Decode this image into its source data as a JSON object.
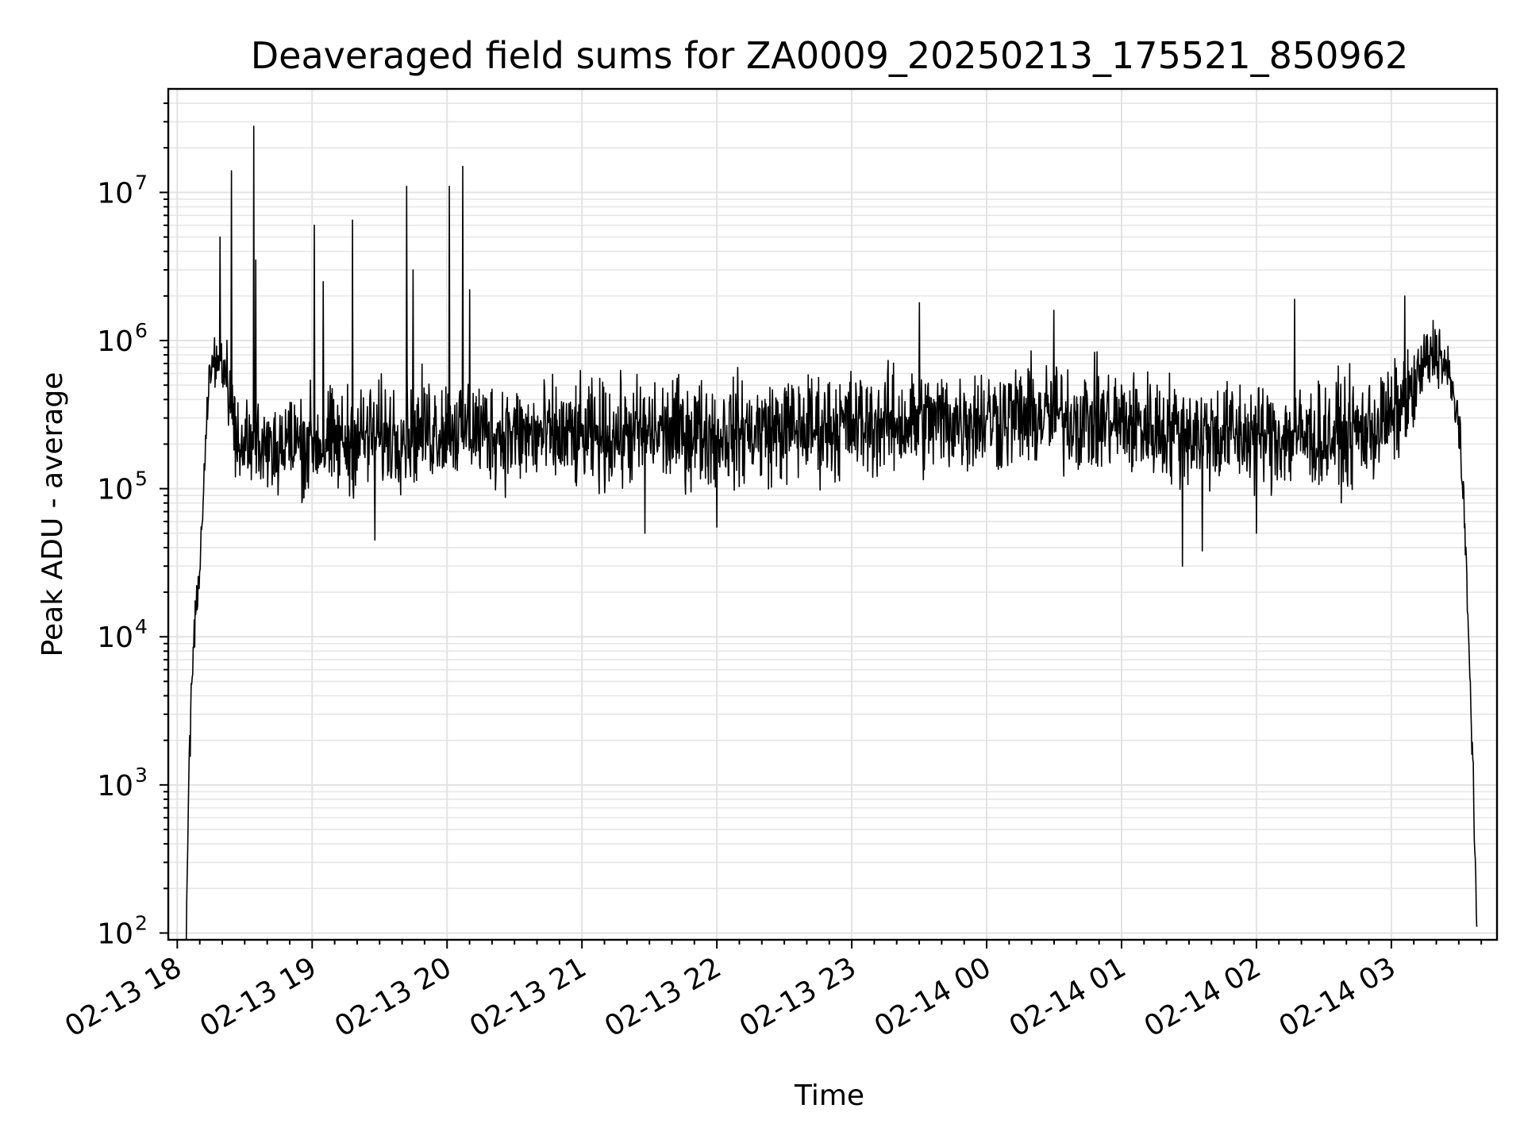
{
  "chart_data": {
    "type": "line",
    "title": "Deaveraged field sums for ZA0009_20250213_175521_850962",
    "xlabel": "Time",
    "ylabel": "Peak ADU - average",
    "yscale": "log",
    "ylim": [
      90,
      50000000
    ],
    "xlim": [
      "2025-02-13 17:56",
      "2025-02-14 03:47"
    ],
    "grid": true,
    "x_ticks": [
      {
        "label": "02-13 18",
        "value": "2025-02-13 18:00"
      },
      {
        "label": "02-13 19",
        "value": "2025-02-13 19:00"
      },
      {
        "label": "02-13 20",
        "value": "2025-02-13 20:00"
      },
      {
        "label": "02-13 21",
        "value": "2025-02-13 21:00"
      },
      {
        "label": "02-13 22",
        "value": "2025-02-13 22:00"
      },
      {
        "label": "02-13 23",
        "value": "2025-02-13 23:00"
      },
      {
        "label": "02-14 00",
        "value": "2025-02-14 00:00"
      },
      {
        "label": "02-14 01",
        "value": "2025-02-14 01:00"
      },
      {
        "label": "02-14 02",
        "value": "2025-02-14 02:00"
      },
      {
        "label": "02-14 03",
        "value": "2025-02-14 03:00"
      }
    ],
    "y_ticks": [
      {
        "base": "10",
        "exp": "2",
        "value": 100
      },
      {
        "base": "10",
        "exp": "3",
        "value": 1000
      },
      {
        "base": "10",
        "exp": "4",
        "value": 10000
      },
      {
        "base": "10",
        "exp": "5",
        "value": 100000
      },
      {
        "base": "10",
        "exp": "6",
        "value": 1000000
      },
      {
        "base": "10",
        "exp": "7",
        "value": 10000000
      }
    ],
    "series": [
      {
        "color": "#000000",
        "x": [
          "2025-02-13 18:04",
          "2025-02-13 18:05",
          "2025-02-13 18:06",
          "2025-02-13 18:08",
          "2025-02-13 18:10",
          "2025-02-13 18:12",
          "2025-02-13 18:14",
          "2025-02-13 18:17",
          "2025-02-13 18:19",
          "2025-02-13 18:21",
          "2025-02-13 18:24",
          "2025-02-13 18:27",
          "2025-02-13 18:30",
          "2025-02-13 18:34",
          "2025-02-13 18:40",
          "2025-02-13 18:50",
          "2025-02-13 19:00",
          "2025-02-13 19:10",
          "2025-02-13 19:20",
          "2025-02-13 19:30",
          "2025-02-13 19:40",
          "2025-02-13 19:50",
          "2025-02-13 20:00",
          "2025-02-13 20:15",
          "2025-02-13 20:30",
          "2025-02-13 21:00",
          "2025-02-13 21:30",
          "2025-02-13 22:00",
          "2025-02-13 22:30",
          "2025-02-13 23:00",
          "2025-02-13 23:30",
          "2025-02-14 00:00",
          "2025-02-14 00:30",
          "2025-02-14 01:00",
          "2025-02-14 01:30",
          "2025-02-14 02:00",
          "2025-02-14 02:30",
          "2025-02-14 02:50",
          "2025-02-14 03:00",
          "2025-02-14 03:10",
          "2025-02-14 03:15",
          "2025-02-14 03:20",
          "2025-02-14 03:25",
          "2025-02-14 03:30",
          "2025-02-14 03:33",
          "2025-02-14 03:36",
          "2025-02-14 03:38"
        ],
        "y": [
          100,
          800,
          3000,
          15000,
          25000,
          150000,
          500000,
          800000,
          900000,
          700000,
          300000,
          200000,
          200000,
          200000,
          190000,
          200000,
          210000,
          200000,
          220000,
          230000,
          240000,
          250000,
          260000,
          250000,
          230000,
          220000,
          240000,
          240000,
          250000,
          270000,
          280000,
          300000,
          310000,
          280000,
          240000,
          230000,
          220000,
          250000,
          300000,
          450000,
          700000,
          900000,
          600000,
          300000,
          40000,
          2000,
          100
        ]
      }
    ],
    "spikes": [
      {
        "x": "2025-02-13 18:19",
        "y": 5000000
      },
      {
        "x": "2025-02-13 18:24",
        "y": 14000000
      },
      {
        "x": "2025-02-13 18:34",
        "y": 28000000
      },
      {
        "x": "2025-02-13 18:35",
        "y": 3500000
      },
      {
        "x": "2025-02-13 19:01",
        "y": 6000000
      },
      {
        "x": "2025-02-13 19:05",
        "y": 2500000
      },
      {
        "x": "2025-02-13 19:18",
        "y": 6500000
      },
      {
        "x": "2025-02-13 19:42",
        "y": 11000000
      },
      {
        "x": "2025-02-13 19:45",
        "y": 3000000
      },
      {
        "x": "2025-02-13 20:01",
        "y": 11000000
      },
      {
        "x": "2025-02-13 20:07",
        "y": 15000000
      },
      {
        "x": "2025-02-13 20:10",
        "y": 2200000
      },
      {
        "x": "2025-02-13 23:30",
        "y": 1800000
      },
      {
        "x": "2025-02-14 00:30",
        "y": 1600000
      },
      {
        "x": "2025-02-14 02:17",
        "y": 1900000
      },
      {
        "x": "2025-02-14 03:06",
        "y": 2000000
      }
    ],
    "dips": [
      {
        "x": "2025-02-13 19:28",
        "y": 45000
      },
      {
        "x": "2025-02-13 21:28",
        "y": 50000
      },
      {
        "x": "2025-02-13 22:00",
        "y": 55000
      },
      {
        "x": "2025-02-14 01:27",
        "y": 30000
      },
      {
        "x": "2025-02-14 01:36",
        "y": 38000
      },
      {
        "x": "2025-02-14 02:00",
        "y": 50000
      }
    ]
  }
}
